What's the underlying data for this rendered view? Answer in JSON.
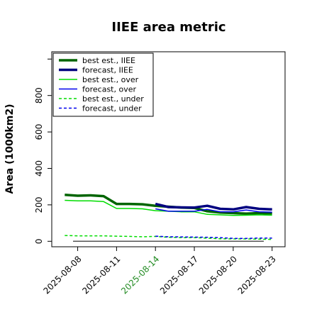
{
  "chart_data": {
    "type": "line",
    "title": "IIEE area metric",
    "xlabel": "",
    "ylabel": "Area (1000km2)",
    "x_ticks": [
      "2025-08-08",
      "2025-08-11",
      "2025-08-14",
      "2025-08-17",
      "2025-08-20",
      "2025-08-23"
    ],
    "highlight_tick": "2025-08-14",
    "highlight_color": "#228B22",
    "y_ticks": [
      0,
      200,
      400,
      600,
      800
    ],
    "xlim": [
      "2025-08-06",
      "2025-08-24"
    ],
    "ylim": [
      -30,
      1040
    ],
    "grid": false,
    "legend_position": "top-left",
    "baseline": {
      "value": 0,
      "color": "#555555"
    },
    "series": [
      {
        "name": "best est., IIEE",
        "color": "#006400",
        "style": "solid",
        "width": 3.5,
        "x": [
          "2025-08-07",
          "2025-08-08",
          "2025-08-09",
          "2025-08-10",
          "2025-08-11",
          "2025-08-12",
          "2025-08-13",
          "2025-08-14",
          "2025-08-15",
          "2025-08-16",
          "2025-08-17",
          "2025-08-18",
          "2025-08-19",
          "2025-08-20",
          "2025-08-21",
          "2025-08-22",
          "2025-08-23"
        ],
        "values": [
          255,
          250,
          252,
          248,
          205,
          205,
          203,
          195,
          190,
          185,
          183,
          165,
          158,
          155,
          152,
          155,
          153
        ]
      },
      {
        "name": "forecast, IIEE",
        "color": "#000080",
        "style": "solid",
        "width": 3.5,
        "x": [
          "2025-08-14",
          "2025-08-15",
          "2025-08-16",
          "2025-08-17",
          "2025-08-18",
          "2025-08-19",
          "2025-08-20",
          "2025-08-21",
          "2025-08-22",
          "2025-08-23"
        ],
        "values": [
          205,
          188,
          186,
          185,
          195,
          178,
          175,
          188,
          178,
          175
        ]
      },
      {
        "name": "best est., over",
        "color": "#00DD00",
        "style": "solid",
        "width": 1.5,
        "x": [
          "2025-08-07",
          "2025-08-08",
          "2025-08-09",
          "2025-08-10",
          "2025-08-11",
          "2025-08-12",
          "2025-08-13",
          "2025-08-14",
          "2025-08-15",
          "2025-08-16",
          "2025-08-17",
          "2025-08-18",
          "2025-08-19",
          "2025-08-20",
          "2025-08-21",
          "2025-08-22",
          "2025-08-23"
        ],
        "values": [
          225,
          222,
          222,
          218,
          180,
          180,
          178,
          168,
          165,
          162,
          162,
          148,
          145,
          142,
          143,
          145,
          143
        ]
      },
      {
        "name": "forecast, over",
        "color": "#0000EE",
        "style": "solid",
        "width": 1.5,
        "x": [
          "2025-08-14",
          "2025-08-15",
          "2025-08-16",
          "2025-08-17",
          "2025-08-18",
          "2025-08-19",
          "2025-08-20",
          "2025-08-21",
          "2025-08-22",
          "2025-08-23"
        ],
        "values": [
          178,
          165,
          165,
          165,
          175,
          162,
          162,
          172,
          162,
          160
        ]
      },
      {
        "name": "best est., under",
        "color": "#00DD00",
        "style": "dashed",
        "width": 1.5,
        "x": [
          "2025-08-07",
          "2025-08-08",
          "2025-08-09",
          "2025-08-10",
          "2025-08-11",
          "2025-08-12",
          "2025-08-13",
          "2025-08-14",
          "2025-08-15",
          "2025-08-16",
          "2025-08-17",
          "2025-08-18",
          "2025-08-19",
          "2025-08-20",
          "2025-08-21",
          "2025-08-22",
          "2025-08-23"
        ],
        "values": [
          32,
          30,
          30,
          30,
          28,
          27,
          25,
          27,
          22,
          20,
          20,
          17,
          14,
          13,
          13,
          12,
          10
        ]
      },
      {
        "name": "forecast, under",
        "color": "#0000EE",
        "style": "dashed",
        "width": 1.5,
        "x": [
          "2025-08-14",
          "2025-08-15",
          "2025-08-16",
          "2025-08-17",
          "2025-08-18",
          "2025-08-19",
          "2025-08-20",
          "2025-08-21",
          "2025-08-22",
          "2025-08-23"
        ],
        "values": [
          28,
          25,
          24,
          23,
          22,
          20,
          16,
          16,
          18,
          18
        ]
      }
    ]
  }
}
